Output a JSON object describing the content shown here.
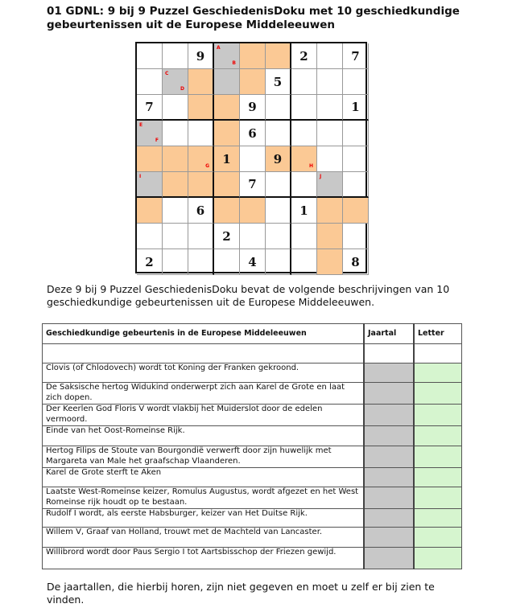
{
  "title": "01 GDNL: 9 bij 9 Puzzel GeschiedenisDoku met 10 geschiedkundige gebeurtenissen uit de Europese Middeleeuwen",
  "colors": {
    "highlight": "#fbc995",
    "letter_cell": "#c8c8c8",
    "letter_column": "#d6f5cf",
    "letter_marker": "#e00000"
  },
  "sudoku": {
    "digits": [
      "..9...2.7",
      ".....5...",
      "7...9...1",
      "....6....",
      "...1.9...",
      "....7....",
      "..6...1..",
      "...2.....",
      "2...4...8"
    ],
    "fills": [
      "...goo...",
      ".gogo....",
      "..oo.....",
      "g..o.....",
      "oooo.oo..",
      "gooo...g.",
      "o..oo..oo",
      ".......o.",
      ".......o."
    ],
    "letters": [
      {
        "row": 0,
        "col": 3,
        "tl": "A",
        "br": "B"
      },
      {
        "row": 1,
        "col": 1,
        "tl": "C",
        "br": "D"
      },
      {
        "row": 3,
        "col": 0,
        "tl": "E",
        "br": "F"
      },
      {
        "row": 4,
        "col": 2,
        "br": "G"
      },
      {
        "row": 4,
        "col": 6,
        "br": "H"
      },
      {
        "row": 5,
        "col": 0,
        "tl": "I"
      },
      {
        "row": 5,
        "col": 7,
        "tl": "J"
      }
    ]
  },
  "intro": "Deze 9 bij 9 Puzzel GeschiedenisDoku bevat de volgende beschrijvingen van 10 geschiedkundige gebeurtenissen uit de Europese Middeleeuwen.",
  "table": {
    "headers": [
      "Geschiedkundige gebeurtenis in de Europese Middeleeuwen",
      "Jaartal",
      "Letter"
    ],
    "rows": [
      "Clovis (of Chlodovech) wordt tot Koning der Franken gekroond.",
      "De Saksische hertog Widukind onderwerpt zich aan Karel de Grote en laat zich dopen.",
      "Der Keerlen God Floris V wordt vlakbij het Muiderslot door de edelen vermoord.",
      "Einde van het Oost-Romeinse Rijk.",
      "Hertog Filips de Stoute van Bourgondië verwerft door zijn huwelijk met Margareta van Male het graafschap Vlaanderen.",
      "Karel de Grote sterft te Aken",
      "Laatste West-Romeinse keizer, Romulus Augustus, wordt afgezet en het West Romeinse rijk houdt op te bestaan.",
      "Rudolf I wordt, als eerste Habsburger, keizer van Het Duitse Rijk.",
      "Willem V, Graaf van Holland, trouwt met de Machteld van Lancaster.",
      "Willibrord wordt door Paus Sergio I tot Aartsbisschop der Friezen gewijd."
    ]
  },
  "outro": "De jaartallen, die hierbij horen, zijn niet gegeven en moet u zelf er bij zien te vinden."
}
